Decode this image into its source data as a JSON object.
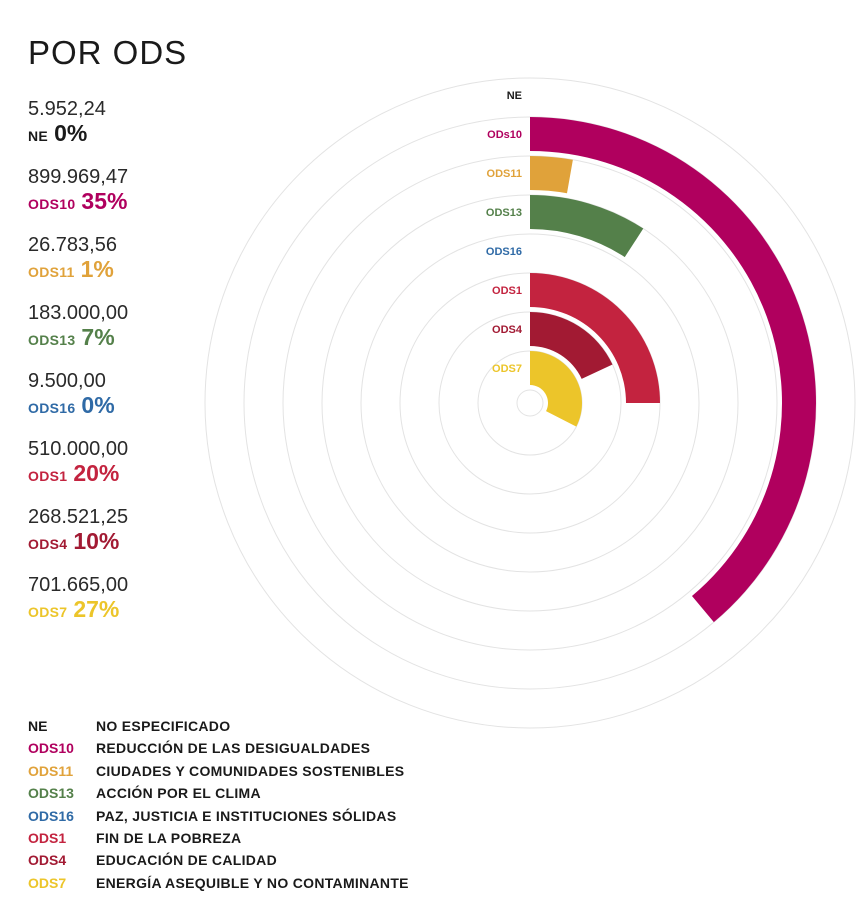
{
  "title": "POR ODS",
  "colors": {
    "NE": "#1a1a1a",
    "ODS10": "#b0005e",
    "ODS11": "#e0a23a",
    "ODS13": "#54804a",
    "ODS16": "#2f6aa6",
    "ODS1": "#c3233f",
    "ODS4": "#a21a33",
    "ODS7": "#ecc52a"
  },
  "stats": [
    {
      "amount": "5.952,24",
      "code": "NE",
      "pct": "0%"
    },
    {
      "amount": "899.969,47",
      "code": "ODS10",
      "pct": "35%"
    },
    {
      "amount": "26.783,56",
      "code": "ODS11",
      "pct": "1%"
    },
    {
      "amount": "183.000,00",
      "code": "ODS13",
      "pct": "7%"
    },
    {
      "amount": "9.500,00",
      "code": "ODS16",
      "pct": "0%"
    },
    {
      "amount": "510.000,00",
      "code": "ODS1",
      "pct": "20%"
    },
    {
      "amount": "268.521,25",
      "code": "ODS4",
      "pct": "10%"
    },
    {
      "amount": "701.665,00",
      "code": "ODS7",
      "pct": "27%"
    }
  ],
  "chart_data": {
    "type": "radial-bar",
    "categories": [
      "NE",
      "ODS10",
      "ODS11",
      "ODS13",
      "ODS16",
      "ODS1",
      "ODS4",
      "ODS7"
    ],
    "labels": [
      "NE",
      "ODs10",
      "ODS11",
      "ODS13",
      "ODS16",
      "ODS1",
      "ODS4",
      "ODS7"
    ],
    "values": [
      5952.24,
      899969.47,
      26783.56,
      183000.0,
      9500.0,
      510000.0,
      268521.25,
      701665.0
    ],
    "percent": [
      0,
      35,
      1,
      7,
      0,
      20,
      10,
      27
    ],
    "angles_deg": [
      0,
      140,
      10,
      33,
      0,
      90,
      65,
      117
    ],
    "grid": true
  },
  "legend": [
    {
      "code": "NE",
      "name": "NO ESPECIFICADO"
    },
    {
      "code": "ODS10",
      "name": "REDUCCIÓN DE LAS DESIGUALDADES"
    },
    {
      "code": "ODS11",
      "name": "CIUDADES Y COMUNIDADES SOSTENIBLES"
    },
    {
      "code": "ODS13",
      "name": "ACCIÓN POR EL CLIMA"
    },
    {
      "code": "ODS16",
      "name": "PAZ, JUSTICIA E INSTITUCIONES SÓLIDAS"
    },
    {
      "code": "ODS1",
      "name": "FIN DE LA POBREZA"
    },
    {
      "code": "ODS4",
      "name": "EDUCACIÓN DE CALIDAD"
    },
    {
      "code": "ODS7",
      "name": "ENERGÍA ASEQUIBLE Y NO CONTAMINANTE"
    }
  ]
}
